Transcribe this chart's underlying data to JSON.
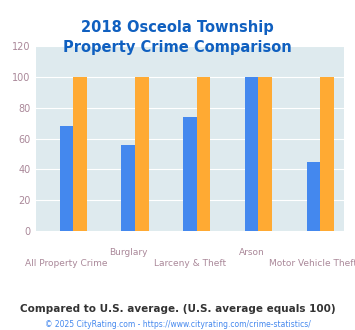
{
  "title": "2018 Osceola Township\nProperty Crime Comparison",
  "title_color": "#1060c0",
  "categories": [
    "All Property Crime",
    "Burglary",
    "Larceny & Theft",
    "Arson",
    "Motor Vehicle Theft"
  ],
  "xlabel_row1": [
    "",
    "Burglary",
    "",
    "Arson",
    ""
  ],
  "xlabel_row2": [
    "All Property Crime",
    "",
    "Larceny & Theft",
    "",
    "Motor Vehicle Theft"
  ],
  "series": {
    "Osceola Township": [
      0,
      0,
      0,
      0,
      0
    ],
    "Pennsylvania": [
      68,
      56,
      74,
      100,
      45
    ],
    "National": [
      100,
      100,
      100,
      100,
      100
    ]
  },
  "colors": {
    "Osceola Township": "#99cc33",
    "Pennsylvania": "#4488ee",
    "National": "#ffaa33"
  },
  "ylim": [
    0,
    120
  ],
  "yticks": [
    0,
    20,
    40,
    60,
    80,
    100,
    120
  ],
  "plot_bg_color": "#deeaee",
  "grid_color": "#ffffff",
  "footer_text": "Compared to U.S. average. (U.S. average equals 100)",
  "copyright_text": "© 2025 CityRating.com - https://www.cityrating.com/crime-statistics/",
  "footer_color": "#333333",
  "copyright_color": "#4488ee",
  "legend_fontsize": 9,
  "tick_color": "#aa8899",
  "bar_width": 0.22
}
